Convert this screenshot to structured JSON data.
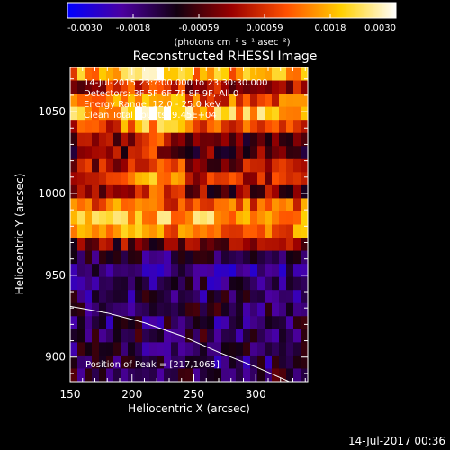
{
  "chart_data": {
    "type": "heatmap",
    "title": "Reconstructed RHESSI Image",
    "xlabel": "Heliocentric X (arcsec)",
    "ylabel": "Heliocentric Y (arcsec)",
    "xlim": [
      150,
      342
    ],
    "ylim": [
      885,
      1077
    ],
    "xticks": [
      150,
      200,
      250,
      300
    ],
    "yticks": [
      900,
      950,
      1000,
      1050
    ],
    "colorbar": {
      "min": -0.003,
      "max": 0.003,
      "ticks": [
        "-0.0030",
        "-0.0018",
        "-0.00059",
        "0.00059",
        "0.0018",
        "0.0030"
      ],
      "unit_label": "(photons cm⁻² s⁻¹ asec⁻²)",
      "colors": [
        "#0000ff",
        "#4b00a0",
        "#120010",
        "#9a0000",
        "#ff5000",
        "#ffd000",
        "#ffffff"
      ]
    },
    "annotations": [
      "14-Jul-2015 23:?:00.000 to 23:30:30.000",
      "Detectors: 3F 5F 6F 7F 8F 9F, All 0",
      "Energy Range: 12.0 - 25.0 keV",
      "Clean     Total counts: 9.45E+04"
    ],
    "peak_label": "Position of Peak = [217,1065]",
    "peak": [
      217,
      1065
    ],
    "limb": {
      "description": "solar limb arc",
      "x": [
        150,
        180,
        210,
        240,
        270,
        300,
        330,
        342
      ],
      "y": [
        931,
        927,
        921,
        913,
        903,
        894,
        884,
        880
      ]
    },
    "rows": {
      "y": [
        1075,
        1067,
        1059,
        1051,
        1043,
        1035,
        1027,
        1019,
        1011,
        1003,
        995,
        987,
        979,
        971,
        963,
        955,
        947,
        939,
        931,
        923,
        915,
        907,
        899,
        891
      ],
      "intensity": [
        0.5,
        0.0,
        0.3,
        0.6,
        0.25,
        -0.15,
        -0.2,
        0.0,
        0.1,
        -0.1,
        0.35,
        0.6,
        0.45,
        -0.1,
        -0.45,
        -0.6,
        -0.55,
        -0.5,
        -0.45,
        -0.5,
        -0.45,
        -0.45,
        -0.5,
        -0.4
      ]
    }
  },
  "footer": {
    "date": "14-Jul-2017 00:36"
  }
}
